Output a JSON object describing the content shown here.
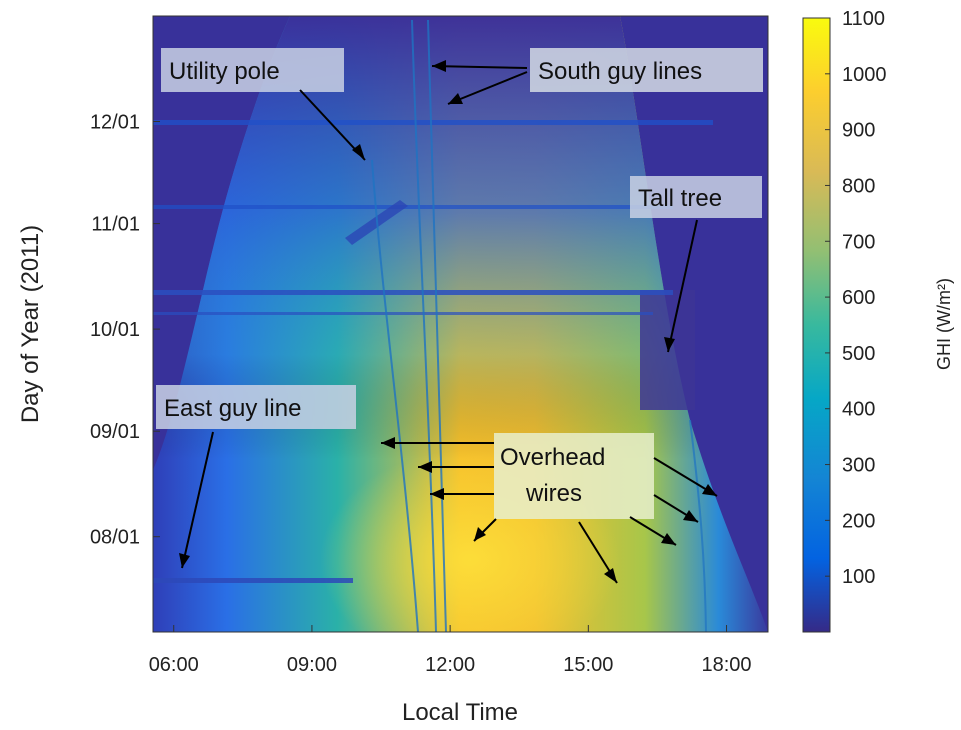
{
  "chart_data": {
    "type": "heatmap",
    "xlabel": "Local Time",
    "ylabel": "Day of Year (2011)",
    "x_ticks": [
      "06:00",
      "09:00",
      "12:00",
      "15:00",
      "18:00"
    ],
    "x_tick_hours": [
      6,
      9,
      12,
      15,
      18
    ],
    "xlim_hours": [
      5.55,
      18.9
    ],
    "y_ticks": [
      "12/01",
      "11/01",
      "10/01",
      "09/01",
      "08/01"
    ],
    "y_tick_day_of_year": [
      335,
      305,
      274,
      244,
      213
    ],
    "ylim_day_of_year": [
      185,
      366
    ],
    "colorbar": {
      "label": "GHI (W/m²)",
      "ticks": [
        100,
        200,
        300,
        400,
        500,
        600,
        700,
        800,
        900,
        1000,
        1100
      ],
      "range": [
        0,
        1100
      ],
      "colormap": "parula"
    },
    "annotations": [
      {
        "label": "Utility pole"
      },
      {
        "label": "South guy lines"
      },
      {
        "label": "Tall tree"
      },
      {
        "label": "East guy line"
      },
      {
        "label": "Overhead\nwires"
      }
    ]
  },
  "colors": {
    "outside_daylight": "#3a2f9a",
    "low_irradiance": "#1e6be0",
    "mid_irradiance": "#2bb49a",
    "high_irradiance": "#f5c030",
    "peak": "#fde53a",
    "label_box": "#d0d6e2",
    "arrow": "#000000"
  }
}
